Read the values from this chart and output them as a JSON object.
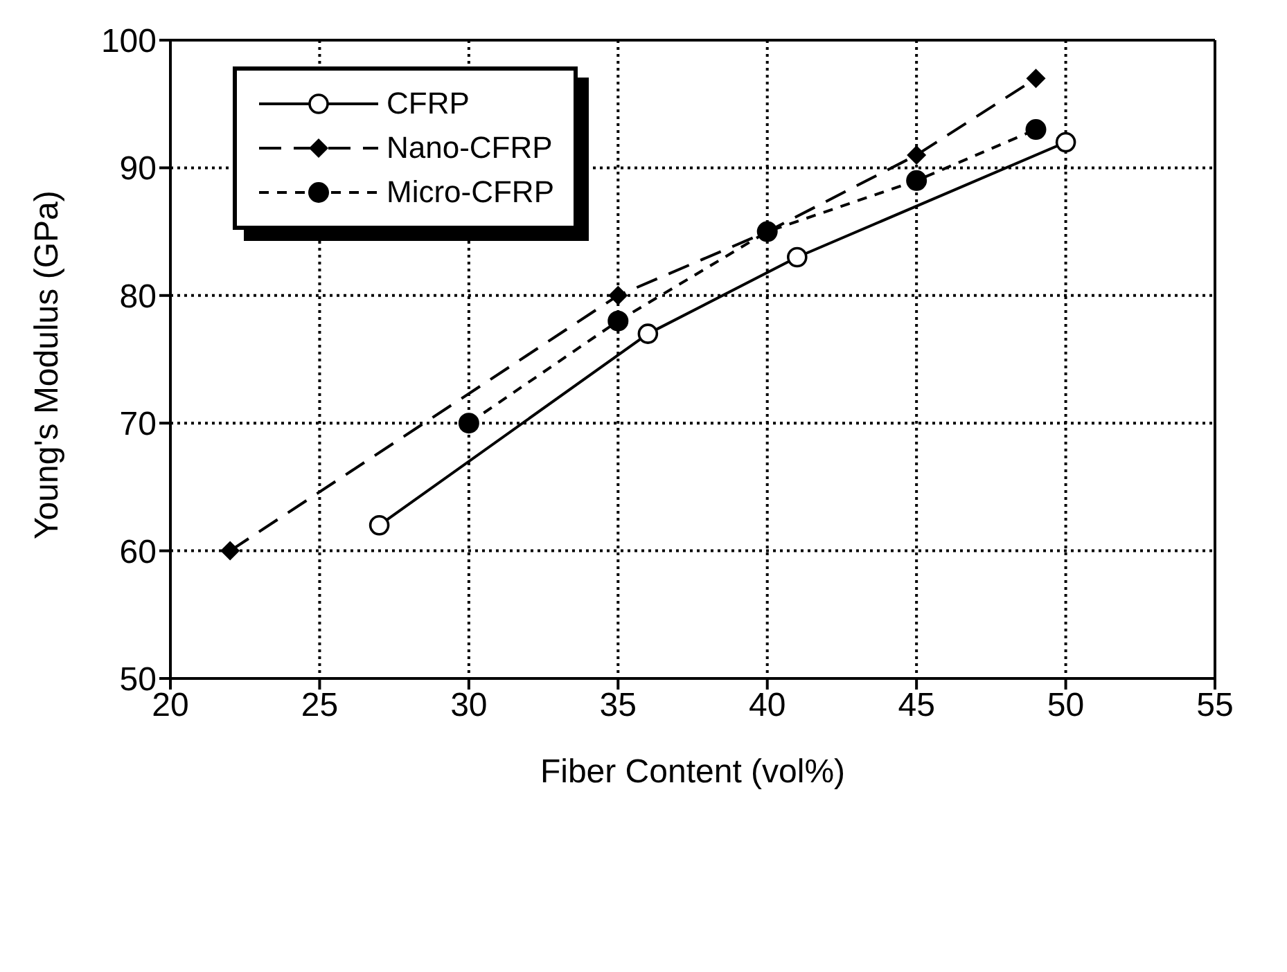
{
  "chart_data": {
    "type": "line",
    "xlabel": "Fiber Content (vol%)",
    "ylabel": "Young's Modulus (GPa)",
    "xlim": [
      20,
      55
    ],
    "xticks": [
      20,
      25,
      30,
      35,
      40,
      45,
      50,
      55
    ],
    "ylim": [
      50,
      100
    ],
    "yticks": [
      50,
      60,
      70,
      80,
      90,
      100
    ],
    "grid": true,
    "legend": "top left",
    "series": [
      {
        "name": "CFRP",
        "color": "#000000",
        "x": [
          27,
          36,
          41,
          50
        ],
        "values": [
          62,
          77,
          83,
          92
        ],
        "marker": "circle",
        "line_style": "solid"
      },
      {
        "name": "Nano-CFRP",
        "color": "#000000",
        "x": [
          22,
          35,
          40,
          45,
          49
        ],
        "values": [
          60,
          80,
          85,
          91,
          97
        ],
        "marker": "diamond",
        "line_style": "dashed"
      },
      {
        "name": "Micro-CFRP",
        "color": "#000000",
        "x": [
          30,
          35,
          40,
          45,
          49
        ],
        "values": [
          70,
          78,
          85,
          89,
          93
        ],
        "marker": "filled_circle",
        "line_style": "dashed"
      }
    ]
  }
}
